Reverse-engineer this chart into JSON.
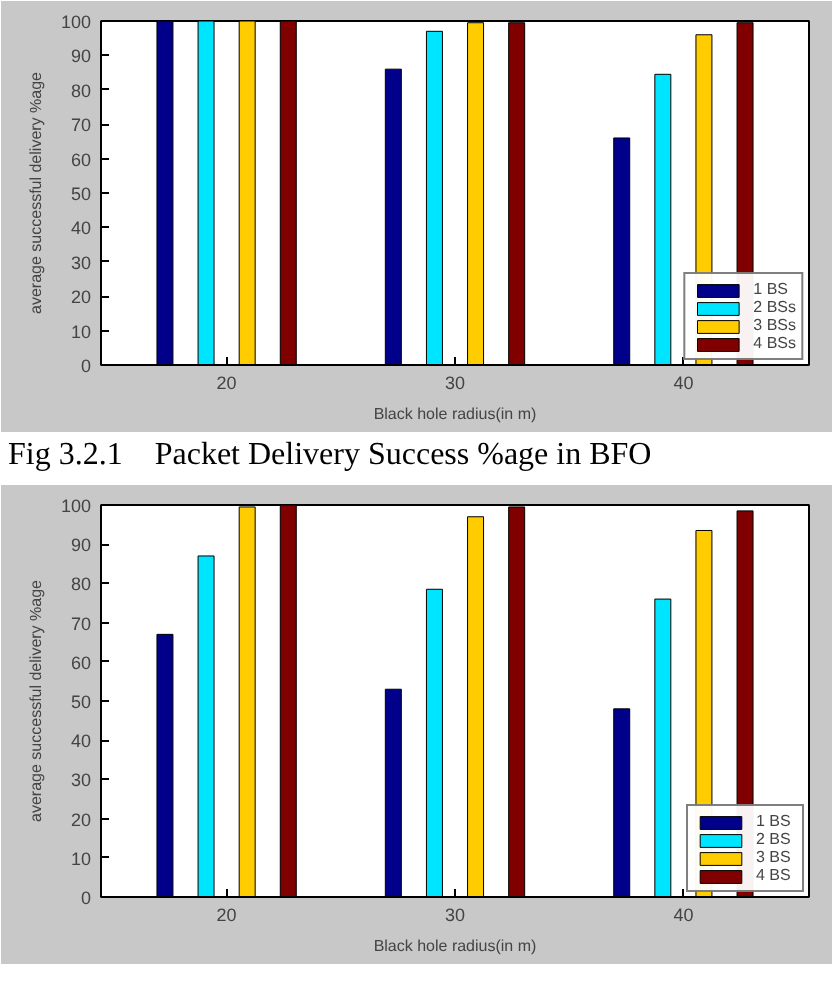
{
  "chart_data": [
    {
      "type": "bar",
      "xlabel": "Black hole radius(in m)",
      "ylabel": "average successful delivery %age",
      "categories": [
        "20",
        "30",
        "40"
      ],
      "ylim": [
        0,
        100
      ],
      "yticks": [
        0,
        10,
        20,
        30,
        40,
        50,
        60,
        70,
        80,
        90,
        100
      ],
      "grid": false,
      "legend": "bottom right",
      "annotations": [
        "Fig 3.2.1    Packet Delivery Success %age in BFO"
      ],
      "series": [
        {
          "name": "1 BS",
          "color": "#00008b",
          "values": [
            100,
            86,
            66
          ]
        },
        {
          "name": "2 BSs",
          "color": "#00e5ff",
          "values": [
            100,
            97,
            84.5
          ]
        },
        {
          "name": "3 BSs",
          "color": "#ffcc00",
          "values": [
            100,
            99.5,
            96
          ]
        },
        {
          "name": "4 BSs",
          "color": "#800000",
          "values": [
            100,
            99.5,
            99.5
          ]
        }
      ]
    },
    {
      "type": "bar",
      "xlabel": "Black hole radius(in m)",
      "ylabel": "average successful delivery %age",
      "categories": [
        "20",
        "30",
        "40"
      ],
      "ylim": [
        0,
        100
      ],
      "yticks": [
        0,
        10,
        20,
        30,
        40,
        50,
        60,
        70,
        80,
        90,
        100
      ],
      "grid": false,
      "legend": "bottom right",
      "series": [
        {
          "name": "1 BS",
          "color": "#00008b",
          "values": [
            67,
            53,
            48
          ]
        },
        {
          "name": "2 BS",
          "color": "#00e5ff",
          "values": [
            87,
            78.5,
            76
          ]
        },
        {
          "name": "3 BS",
          "color": "#ffcc00",
          "values": [
            99.5,
            97,
            93.5
          ]
        },
        {
          "name": "4 BS",
          "color": "#800000",
          "values": [
            100,
            99.5,
            98.5
          ]
        }
      ]
    }
  ]
}
